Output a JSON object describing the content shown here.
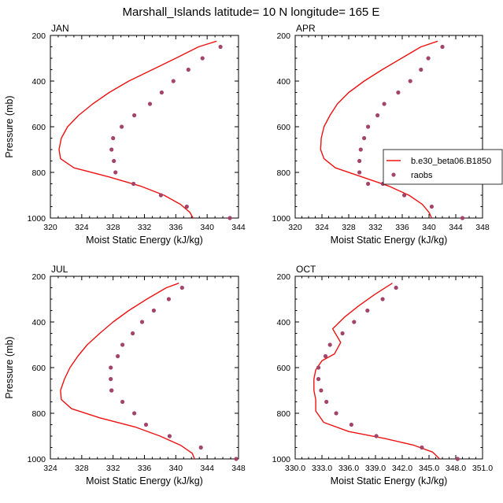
{
  "figure_title": "Marshall_Islands  latitude= 10 N longitude= 165 E",
  "chart_data": [
    {
      "type": "line",
      "panel": "JAN",
      "xlabel": "Moist Static Energy (kJ/kg)",
      "ylabel": "Pressure (mb)",
      "xlim": [
        320,
        344
      ],
      "xticks": [
        320,
        324,
        328,
        332,
        336,
        340,
        344
      ],
      "xtick_labels": [
        "320",
        "324",
        "328",
        "332",
        "336",
        "340",
        "344"
      ],
      "ylim": [
        200,
        1000
      ],
      "yticks": [
        200,
        400,
        600,
        800,
        1000
      ],
      "ytick_labels": [
        "200",
        "400",
        "600",
        "800",
        "1000"
      ],
      "series": [
        {
          "name": "b.e30_beta06.B1850",
          "style": "line",
          "color": "#ee1111",
          "x": [
            341.2,
            338.9,
            336.0,
            333.0,
            330.0,
            327.5,
            325.4,
            323.6,
            322.2,
            321.4,
            321.1,
            321.3,
            323.0,
            327.5,
            331.5,
            334.5,
            336.6,
            337.8,
            338.2
          ],
          "y": [
            225,
            250,
            300,
            350,
            400,
            450,
            500,
            550,
            600,
            650,
            700,
            740,
            780,
            820,
            860,
            900,
            940,
            975,
            1000
          ]
        },
        {
          "name": "raobs",
          "style": "marker",
          "color": "#a3456b",
          "x": [
            341.7,
            339.4,
            337.6,
            335.7,
            334.2,
            332.7,
            330.7,
            329.1,
            328.0,
            327.8,
            328.1,
            328.3,
            330.6,
            334.1,
            337.4,
            342.9
          ],
          "y": [
            250,
            300,
            350,
            400,
            450,
            500,
            550,
            600,
            650,
            700,
            750,
            800,
            850,
            900,
            950,
            1000
          ]
        }
      ]
    },
    {
      "type": "line",
      "panel": "APR",
      "xlabel": "Moist Static Energy (kJ/kg)",
      "ylabel": "",
      "xlim": [
        320,
        348
      ],
      "xticks": [
        320,
        324,
        328,
        332,
        336,
        340,
        344,
        348
      ],
      "xtick_labels": [
        "320",
        "324",
        "328",
        "332",
        "336",
        "340",
        "344",
        "348"
      ],
      "ylim": [
        200,
        1000
      ],
      "yticks": [
        200,
        400,
        600,
        800,
        1000
      ],
      "ytick_labels": [
        "200",
        "400",
        "600",
        "800",
        "1000"
      ],
      "legend": {
        "placement": "right",
        "entries": [
          "b.e30_beta06.B1850",
          "raobs"
        ]
      },
      "series": [
        {
          "name": "b.e30_beta06.B1850",
          "style": "line",
          "color": "#ee1111",
          "x": [
            341.3,
            338.8,
            335.9,
            333.0,
            330.3,
            328.0,
            326.3,
            325.2,
            324.3,
            323.9,
            323.8,
            324.3,
            326.0,
            330.0,
            334.0,
            337.0,
            339.0,
            340.0,
            340.4
          ],
          "y": [
            225,
            250,
            300,
            350,
            400,
            450,
            500,
            550,
            600,
            650,
            700,
            740,
            780,
            820,
            860,
            900,
            940,
            975,
            1000
          ]
        },
        {
          "name": "raobs",
          "style": "marker",
          "color": "#a3456b",
          "x": [
            342.0,
            339.9,
            338.8,
            337.2,
            335.4,
            333.3,
            332.3,
            330.9,
            330.3,
            329.8,
            329.6,
            329.6,
            330.9,
            333.1,
            336.3,
            340.4,
            345.0
          ],
          "y": [
            250,
            300,
            350,
            400,
            450,
            500,
            550,
            600,
            650,
            700,
            750,
            800,
            850,
            850,
            900,
            950,
            1000
          ]
        }
      ]
    },
    {
      "type": "line",
      "panel": "JUL",
      "xlabel": "Moist Static Energy (kJ/kg)",
      "ylabel": "Pressure (mb)",
      "xlim": [
        324,
        348
      ],
      "xticks": [
        324,
        328,
        332,
        336,
        340,
        344,
        348
      ],
      "xtick_labels": [
        "324",
        "328",
        "332",
        "336",
        "340",
        "344",
        "348"
      ],
      "ylim": [
        200,
        1000
      ],
      "yticks": [
        200,
        400,
        600,
        800,
        1000
      ],
      "ytick_labels": [
        "200",
        "400",
        "600",
        "800",
        "1000"
      ],
      "series": [
        {
          "name": "b.e30_beta06.B1850",
          "style": "line",
          "color": "#ee1111",
          "x": [
            340.4,
            338.8,
            336.3,
            334.0,
            332.0,
            330.3,
            328.7,
            327.5,
            326.5,
            325.8,
            325.3,
            325.4,
            326.7,
            330.3,
            334.8,
            338.0,
            340.6,
            342.1,
            342.4
          ],
          "y": [
            230,
            250,
            300,
            350,
            400,
            450,
            500,
            550,
            600,
            650,
            700,
            740,
            780,
            820,
            860,
            900,
            940,
            975,
            1000
          ]
        },
        {
          "name": "raobs",
          "style": "marker",
          "color": "#a3456b",
          "x": [
            340.8,
            339.1,
            337.2,
            335.7,
            334.5,
            333.2,
            332.6,
            331.7,
            331.7,
            331.8,
            331.8,
            333.2,
            334.7,
            336.2,
            339.2,
            343.2,
            347.7
          ],
          "y": [
            250,
            300,
            350,
            400,
            450,
            500,
            550,
            600,
            650,
            700,
            700,
            750,
            800,
            850,
            900,
            950,
            1000
          ]
        }
      ]
    },
    {
      "type": "line",
      "panel": "OCT",
      "xlabel": "Moist Static Energy (kJ/kg)",
      "ylabel": "",
      "xlim": [
        330.0,
        351.0
      ],
      "xticks": [
        330,
        333,
        336,
        339,
        342,
        345,
        348,
        351
      ],
      "xtick_labels": [
        "330.0",
        "333.0",
        "336.0",
        "339.0",
        "342.0",
        "345.0",
        "348.0",
        "351.0"
      ],
      "ylim": [
        200,
        1000
      ],
      "yticks": [
        200,
        400,
        600,
        800,
        1000
      ],
      "ytick_labels": [
        "200",
        "400",
        "600",
        "800",
        "1000"
      ],
      "series": [
        {
          "name": "b.e30_beta06.B1850",
          "style": "line",
          "color": "#ee1111",
          "x": [
            340.9,
            338.9,
            337.1,
            335.5,
            334.2,
            335.1,
            334.4,
            333.0,
            332.3,
            332.1,
            332.1,
            332.3,
            332.3,
            333.2,
            336.0,
            340.0,
            343.3,
            345.4,
            346.2
          ],
          "y": [
            230,
            280,
            330,
            380,
            430,
            490,
            540,
            570,
            610,
            650,
            700,
            740,
            790,
            840,
            880,
            910,
            940,
            970,
            1000
          ]
        },
        {
          "name": "raobs",
          "style": "marker",
          "color": "#a3456b",
          "x": [
            341.3,
            339.8,
            338.1,
            336.6,
            335.3,
            333.9,
            333.4,
            332.6,
            332.6,
            332.9,
            333.5,
            334.6,
            336.3,
            339.1,
            344.2,
            348.2
          ],
          "y": [
            250,
            300,
            350,
            400,
            450,
            500,
            550,
            600,
            650,
            700,
            750,
            800,
            850,
            900,
            950,
            1000
          ]
        }
      ]
    }
  ]
}
